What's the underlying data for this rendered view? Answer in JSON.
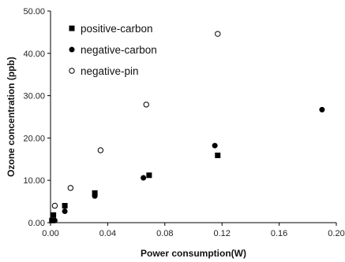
{
  "chart_data": {
    "type": "scatter",
    "xlabel": "Power consumption(W)",
    "ylabel": "Ozone concentration (ppb)",
    "xlim": [
      0.0,
      0.2
    ],
    "ylim": [
      0.0,
      50.0
    ],
    "x_ticks": [
      "0.00",
      "0.04",
      "0.08",
      "0.12",
      "0.16",
      "0.20"
    ],
    "y_ticks": [
      "0.00",
      "10.00",
      "20.00",
      "30.00",
      "40.00",
      "50.00"
    ],
    "grid": false,
    "legend_position": "top-left",
    "series": [
      {
        "name": "positive-carbon",
        "marker": "filled-square",
        "color": "#000000",
        "points": [
          [
            0.001,
            0.5
          ],
          [
            0.002,
            1.8
          ],
          [
            0.01,
            4.0
          ],
          [
            0.031,
            7.0
          ],
          [
            0.069,
            11.2
          ],
          [
            0.117,
            15.9
          ]
        ]
      },
      {
        "name": "negative-carbon",
        "marker": "filled-circle",
        "color": "#000000",
        "points": [
          [
            0.003,
            0.5
          ],
          [
            0.01,
            2.7
          ],
          [
            0.031,
            6.3
          ],
          [
            0.065,
            10.6
          ],
          [
            0.115,
            18.2
          ],
          [
            0.19,
            26.7
          ]
        ]
      },
      {
        "name": "negative-pin",
        "marker": "open-circle",
        "color": "#000000",
        "points": [
          [
            0.003,
            4.0
          ],
          [
            0.014,
            8.2
          ],
          [
            0.035,
            17.1
          ],
          [
            0.067,
            27.9
          ],
          [
            0.117,
            44.6
          ]
        ]
      }
    ]
  }
}
